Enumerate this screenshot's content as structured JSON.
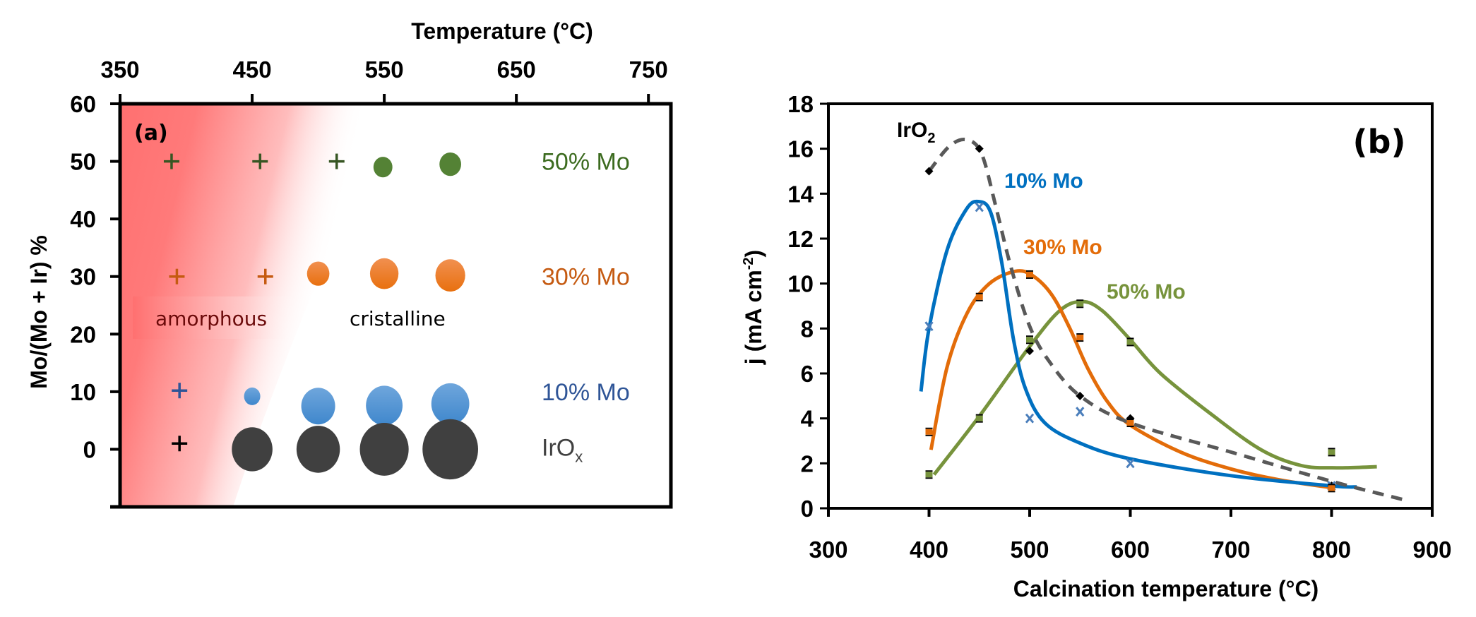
{
  "chart_data": [
    {
      "id": "a",
      "type": "scatter",
      "panel_label": "(a)",
      "title": "",
      "xlabel": "Temperature (°C)",
      "ylabel": "Mo/(Mo + Ir) %",
      "xlim": [
        350,
        767
      ],
      "ylim": [
        -10,
        60
      ],
      "x_ticks": [
        350,
        450,
        550,
        650,
        750
      ],
      "y_ticks": [
        0,
        10,
        20,
        30,
        40,
        50,
        60
      ],
      "x_axis_position": "top",
      "grid": false,
      "region_annotations": [
        {
          "text": "amorphous",
          "color": "#6b0a0a",
          "background": "#ff7373"
        },
        {
          "text": "cristalline",
          "color": "#000000"
        }
      ],
      "series": [
        {
          "name": "50% Mo",
          "label_color": "#3c6b1f",
          "marker_color": "#548235",
          "plus_color": "#375623",
          "points": [
            {
              "x": 389,
              "y": 50,
              "marker": "plus"
            },
            {
              "x": 456,
              "y": 50,
              "marker": "plus"
            },
            {
              "x": 514,
              "y": 50,
              "marker": "plus"
            },
            {
              "x": 549,
              "y": 49,
              "marker": "circle",
              "size": 14
            },
            {
              "x": 600,
              "y": 49.5,
              "marker": "circle",
              "size": 16
            }
          ]
        },
        {
          "name": "30% Mo",
          "label_color": "#c55a11",
          "marker_color": "#ed7d31",
          "plus_color": "#c55a11",
          "points": [
            {
              "x": 393,
              "y": 30,
              "marker": "plus"
            },
            {
              "x": 460,
              "y": 30,
              "marker": "plus"
            },
            {
              "x": 500,
              "y": 30.5,
              "marker": "circle",
              "size": 16.5
            },
            {
              "x": 550,
              "y": 30.5,
              "marker": "circle",
              "size": 21
            },
            {
              "x": 600,
              "y": 30.2,
              "marker": "circle",
              "size": 22
            }
          ]
        },
        {
          "name": "10% Mo",
          "label_color": "#2f5597",
          "marker_color": "#5b9bd5",
          "plus_color": "#2f5597",
          "points": [
            {
              "x": 395,
              "y": 10.2,
              "marker": "plus"
            },
            {
              "x": 450,
              "y": 9.2,
              "marker": "circle",
              "size": 12
            },
            {
              "x": 500,
              "y": 7.5,
              "marker": "circle",
              "size": 25
            },
            {
              "x": 550,
              "y": 7.6,
              "marker": "circle",
              "size": 27
            },
            {
              "x": 600,
              "y": 7.9,
              "marker": "circle",
              "size": 28
            }
          ]
        },
        {
          "name": "IrOx",
          "name_main": "IrO",
          "name_sub": "x",
          "label_color": "#404040",
          "marker_color": "#404040",
          "plus_color": "#000000",
          "points": [
            {
              "x": 395,
              "y": 1.0,
              "marker": "plus"
            },
            {
              "x": 450,
              "y": 0,
              "marker": "circle",
              "size": 30
            },
            {
              "x": 500,
              "y": 0,
              "marker": "circle",
              "size": 32
            },
            {
              "x": 550,
              "y": 0,
              "marker": "circle",
              "size": 36
            },
            {
              "x": 600,
              "y": 0,
              "marker": "circle",
              "size": 41
            }
          ]
        }
      ]
    },
    {
      "id": "b",
      "type": "line",
      "panel_label": "(b)",
      "title": "",
      "xlabel": "Calcination temperature (°C)",
      "ylabel_main": "j (mA cm",
      "ylabel_sup": "-2",
      "ylabel_end": ")",
      "ylabel": "j (mA cm-2)",
      "xlim": [
        300,
        900
      ],
      "ylim": [
        0,
        18
      ],
      "x_ticks": [
        300,
        400,
        500,
        600,
        700,
        800,
        900
      ],
      "y_ticks": [
        0,
        2,
        4,
        6,
        8,
        10,
        12,
        14,
        16,
        18
      ],
      "grid": false,
      "series": [
        {
          "name": "IrO2",
          "label_main": "IrO",
          "label_sub": "2",
          "color": "#595959",
          "label_color": "#000000",
          "dashed": true,
          "marker": "diamond",
          "marker_color": "#000000",
          "points": [
            [
              400,
              15.0
            ],
            [
              450,
              16.0
            ],
            [
              500,
              7.0
            ],
            [
              550,
              5.0
            ],
            [
              600,
              4.0
            ],
            [
              800,
              1.0
            ]
          ],
          "fit": [
            [
              400,
              15.0
            ],
            [
              420,
              16.1
            ],
            [
              437,
              16.4
            ],
            [
              452,
              15.8
            ],
            [
              466,
              13.5
            ],
            [
              481,
              10.8
            ],
            [
              500,
              8.1
            ],
            [
              520,
              6.5
            ],
            [
              550,
              5.0
            ],
            [
              600,
              3.8
            ],
            [
              700,
              2.5
            ],
            [
              800,
              1.2
            ],
            [
              870,
              0.4
            ]
          ]
        },
        {
          "name": "10% Mo",
          "color": "#0070c0",
          "label_color": "#0070c0",
          "dashed": false,
          "marker": "cross",
          "marker_color": "#4a7ebb",
          "points": [
            [
              400,
              8.1
            ],
            [
              450,
              13.4
            ],
            [
              500,
              4.0
            ],
            [
              550,
              4.3
            ],
            [
              600,
              2.0
            ],
            [
              800,
              1.0
            ]
          ],
          "fit": [
            [
              392,
              5.2
            ],
            [
              400,
              8.0
            ],
            [
              418,
              11.5
            ],
            [
              437,
              13.3
            ],
            [
              449,
              13.65
            ],
            [
              461,
              13.2
            ],
            [
              472,
              11.0
            ],
            [
              484,
              7.5
            ],
            [
              496,
              5.3
            ],
            [
              515,
              3.8
            ],
            [
              550,
              2.9
            ],
            [
              600,
              2.2
            ],
            [
              700,
              1.45
            ],
            [
              800,
              1.0
            ],
            [
              825,
              0.95
            ]
          ]
        },
        {
          "name": "30% Mo",
          "color": "#e36c09",
          "label_color": "#e36c09",
          "dashed": false,
          "marker": "square",
          "marker_color": "#e36c09",
          "points": [
            [
              400,
              3.4
            ],
            [
              450,
              9.4
            ],
            [
              500,
              10.4
            ],
            [
              550,
              7.6
            ],
            [
              600,
              3.8
            ],
            [
              800,
              0.9
            ]
          ],
          "fit": [
            [
              402,
              2.6
            ],
            [
              418,
              6.3
            ],
            [
              438,
              8.7
            ],
            [
              460,
              10.0
            ],
            [
              486,
              10.55
            ],
            [
              503,
              10.35
            ],
            [
              522,
              9.5
            ],
            [
              540,
              8.0
            ],
            [
              558,
              6.2
            ],
            [
              578,
              4.7
            ],
            [
              600,
              3.7
            ],
            [
              650,
              2.5
            ],
            [
              700,
              1.75
            ],
            [
              750,
              1.25
            ],
            [
              803,
              0.9
            ]
          ]
        },
        {
          "name": "50% Mo",
          "color": "#77933c",
          "label_color": "#77933c",
          "dashed": false,
          "marker": "square",
          "marker_color": "#77933c",
          "points": [
            [
              400,
              1.5
            ],
            [
              450,
              4.0
            ],
            [
              500,
              7.5
            ],
            [
              550,
              9.1
            ],
            [
              600,
              7.4
            ],
            [
              800,
              2.5
            ]
          ],
          "fit": [
            [
              405,
              1.5
            ],
            [
              450,
              4.1
            ],
            [
              500,
              7.2
            ],
            [
              530,
              8.8
            ],
            [
              552,
              9.2
            ],
            [
              572,
              8.8
            ],
            [
              600,
              7.5
            ],
            [
              630,
              6.0
            ],
            [
              680,
              4.2
            ],
            [
              730,
              2.6
            ],
            [
              770,
              1.9
            ],
            [
              805,
              1.8
            ],
            [
              845,
              1.85
            ]
          ]
        }
      ]
    }
  ]
}
